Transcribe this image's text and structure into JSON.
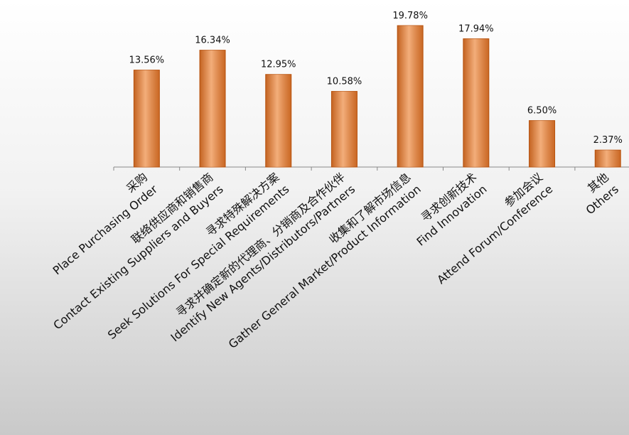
{
  "chart_data": {
    "type": "bar",
    "categories": [
      [
        "采购",
        "Place Purchasing Order"
      ],
      [
        "联络供应商和销售商",
        "Contact Existing Suppliers and Buyers"
      ],
      [
        "寻求特殊解决方案",
        "Seek Solutions For Special Requirements"
      ],
      [
        "寻求并确定新的代理商、分销商及合作伙伴",
        "Identify New Agents/Distributors/Partners"
      ],
      [
        "收集和了解市场信息",
        "Gather General Market/Product Information"
      ],
      [
        "寻求创新技术",
        "Find Innovation"
      ],
      [
        "参加会议",
        "Attend Forum/Conference"
      ],
      [
        "其他",
        "Others"
      ]
    ],
    "values": [
      13.56,
      16.34,
      12.95,
      10.58,
      19.78,
      17.94,
      6.5,
      2.37
    ],
    "value_labels": [
      "13.56%",
      "16.34%",
      "12.95%",
      "10.58%",
      "19.78%",
      "17.94%",
      "6.50%",
      "2.37%"
    ],
    "color": "#ec8233"
  }
}
